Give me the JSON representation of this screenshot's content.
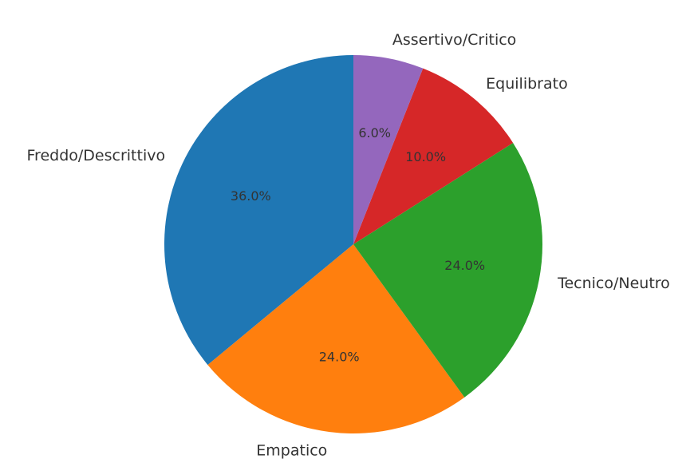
{
  "chart_data": {
    "type": "pie",
    "title": "",
    "start_angle": 90,
    "direction": "counterclockwise",
    "slices": [
      {
        "label": "Freddo/Descrittivo",
        "value": 36.0,
        "pct_label": "36.0%",
        "color": "#1f77b4"
      },
      {
        "label": "Empatico",
        "value": 24.0,
        "pct_label": "24.0%",
        "color": "#ff7f0e"
      },
      {
        "label": "Tecnico/Neutro",
        "value": 24.0,
        "pct_label": "24.0%",
        "color": "#2ca02c"
      },
      {
        "label": "Equilibrato",
        "value": 10.0,
        "pct_label": "10.0%",
        "color": "#d62728"
      },
      {
        "label": "Assertivo/Critico",
        "value": 6.0,
        "pct_label": "6.0%",
        "color": "#9467bd"
      }
    ]
  }
}
